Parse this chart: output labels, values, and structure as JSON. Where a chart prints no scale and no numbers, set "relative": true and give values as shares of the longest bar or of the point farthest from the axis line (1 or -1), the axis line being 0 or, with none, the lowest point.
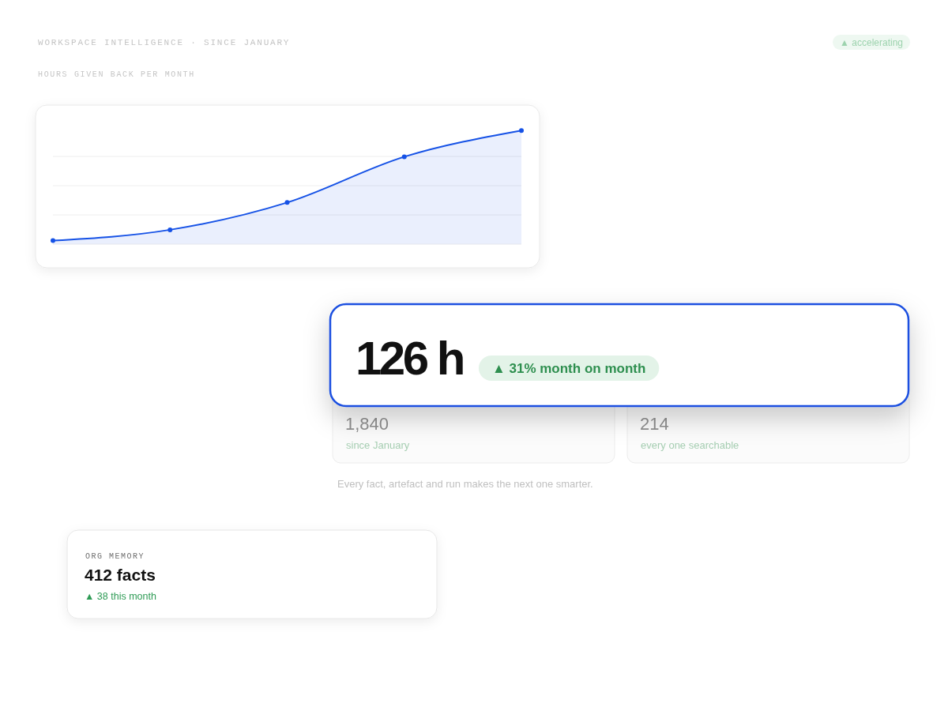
{
  "chart_data": [
    {
      "type": "area",
      "title": "WORKSPACE INTELLIGENCE · SINCE JANUARY",
      "subtitle": "HOURS GIVEN BACK PER MONTH",
      "annotations": [
        "▲ accelerating"
      ],
      "categories": [
        null,
        null,
        null,
        null,
        null
      ],
      "series": [
        {
          "color": "#1652e6",
          "values": [
            0.031,
            0.126,
            0.366,
            0.769,
            1
          ]
        }
      ],
      "relative": true,
      "grid": true,
      "marker": "circle"
    },
    {
      "type": "other",
      "title": "126 h",
      "annotations": [
        "▲ 31% month on month",
        "Every fact, artefact and run makes the next one smarter."
      ]
    },
    {
      "type": "other",
      "title": "1,840",
      "annotations": [
        "since January"
      ]
    },
    {
      "type": "other",
      "title": "214",
      "annotations": [
        "every one searchable"
      ]
    },
    {
      "type": "other",
      "title": "ORG MEMORY",
      "subtitle": "412 facts",
      "annotations": [
        "▲ 38 this month"
      ]
    }
  ]
}
